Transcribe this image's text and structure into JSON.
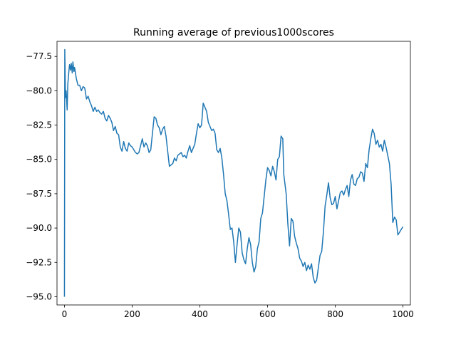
{
  "chart_data": {
    "type": "line",
    "title": "Running average of previous1000scores",
    "xlabel": "",
    "ylabel": "",
    "xlim": [
      -22,
      1022
    ],
    "ylim": [
      -95.6,
      -76.4
    ],
    "xticks": [
      0,
      200,
      400,
      600,
      800,
      1000
    ],
    "yticks": [
      -95.0,
      -92.5,
      -90.0,
      -87.5,
      -85.0,
      -82.5,
      -80.0,
      -77.5
    ],
    "xtick_labels": [
      "0",
      "200",
      "400",
      "600",
      "800",
      "1000"
    ],
    "ytick_labels": [
      "−95.0",
      "−92.5",
      "−90.0",
      "−87.5",
      "−85.0",
      "−82.5",
      "−80.0",
      "−77.5"
    ],
    "grid": false,
    "legend": "none",
    "colors": {
      "line": "#1f77b4",
      "axes": "#000000"
    },
    "series": [
      {
        "x": [
          0,
          1,
          3,
          5,
          8,
          10,
          13,
          15,
          18,
          20,
          23,
          25,
          28,
          30,
          35,
          40,
          45,
          50,
          55,
          60,
          65,
          70,
          75,
          80,
          85,
          90,
          95,
          100,
          105,
          110,
          115,
          120,
          125,
          130,
          135,
          140,
          145,
          150,
          155,
          160,
          165,
          170,
          175,
          180,
          185,
          190,
          195,
          200,
          205,
          210,
          215,
          220,
          225,
          230,
          235,
          240,
          245,
          250,
          255,
          260,
          265,
          270,
          275,
          280,
          285,
          290,
          295,
          300,
          305,
          310,
          315,
          320,
          325,
          330,
          335,
          340,
          345,
          350,
          355,
          360,
          365,
          370,
          375,
          380,
          385,
          390,
          395,
          400,
          405,
          410,
          415,
          420,
          425,
          430,
          435,
          440,
          445,
          450,
          455,
          460,
          465,
          470,
          475,
          480,
          485,
          490,
          495,
          500,
          505,
          510,
          515,
          520,
          525,
          530,
          535,
          540,
          545,
          550,
          555,
          560,
          565,
          570,
          575,
          580,
          585,
          590,
          595,
          600,
          605,
          610,
          615,
          620,
          625,
          630,
          635,
          640,
          645,
          648,
          650,
          655,
          660,
          665,
          670,
          675,
          680,
          685,
          690,
          695,
          700,
          705,
          710,
          715,
          720,
          725,
          730,
          735,
          740,
          745,
          750,
          755,
          760,
          765,
          770,
          775,
          780,
          785,
          790,
          795,
          800,
          805,
          810,
          815,
          820,
          825,
          830,
          835,
          840,
          845,
          850,
          855,
          860,
          865,
          870,
          875,
          880,
          885,
          890,
          895,
          900,
          905,
          910,
          915,
          920,
          925,
          930,
          935,
          940,
          945,
          950,
          955,
          960,
          965,
          970,
          975,
          980,
          985,
          990,
          995,
          1000
        ],
        "values": [
          -95.0,
          -77.0,
          -80.5,
          -80.0,
          -81.4,
          -79.5,
          -78.6,
          -78.1,
          -78.5,
          -78.0,
          -78.7,
          -77.9,
          -78.6,
          -78.3,
          -79.1,
          -79.6,
          -79.6,
          -80.0,
          -79.7,
          -79.8,
          -80.6,
          -80.4,
          -80.8,
          -81.1,
          -81.5,
          -81.2,
          -81.5,
          -81.4,
          -81.6,
          -81.7,
          -81.5,
          -82.0,
          -82.2,
          -81.8,
          -82.0,
          -82.3,
          -82.9,
          -82.6,
          -83.1,
          -83.2,
          -84.1,
          -84.4,
          -83.7,
          -84.2,
          -84.4,
          -83.8,
          -84.0,
          -84.1,
          -84.3,
          -84.5,
          -84.6,
          -84.5,
          -84.0,
          -83.5,
          -84.1,
          -83.8,
          -84.0,
          -84.5,
          -84.3,
          -83.1,
          -81.9,
          -82.0,
          -82.5,
          -82.7,
          -83.2,
          -82.8,
          -82.6,
          -83.3,
          -84.4,
          -85.5,
          -85.4,
          -85.3,
          -84.9,
          -85.1,
          -84.7,
          -84.6,
          -84.5,
          -84.8,
          -84.7,
          -84.9,
          -84.4,
          -84.0,
          -84.5,
          -84.2,
          -83.9,
          -83.1,
          -82.4,
          -82.7,
          -82.5,
          -80.9,
          -81.2,
          -81.5,
          -82.3,
          -82.6,
          -82.9,
          -82.8,
          -83.1,
          -84.3,
          -84.5,
          -84.2,
          -84.9,
          -86.1,
          -87.5,
          -88.0,
          -89.0,
          -90.1,
          -90.0,
          -91.0,
          -92.5,
          -91.2,
          -90.0,
          -90.3,
          -91.8,
          -92.3,
          -92.6,
          -91.5,
          -90.7,
          -91.2,
          -92.5,
          -93.2,
          -92.8,
          -91.5,
          -91.0,
          -89.3,
          -88.9,
          -87.7,
          -86.5,
          -85.6,
          -85.8,
          -86.2,
          -85.5,
          -85.9,
          -86.5,
          -85.0,
          -84.8,
          -83.3,
          -83.5,
          -86.1,
          -86.5,
          -87.5,
          -89.7,
          -91.3,
          -89.3,
          -89.5,
          -90.6,
          -91.1,
          -91.5,
          -92.2,
          -92.4,
          -92.8,
          -92.5,
          -93.1,
          -92.7,
          -93.0,
          -92.6,
          -93.6,
          -94.0,
          -93.8,
          -92.9,
          -92.0,
          -91.7,
          -90.3,
          -88.4,
          -87.6,
          -86.7,
          -87.8,
          -88.3,
          -88.2,
          -87.7,
          -88.6,
          -88.0,
          -87.4,
          -87.3,
          -87.6,
          -87.2,
          -86.9,
          -87.7,
          -86.5,
          -86.1,
          -86.8,
          -86.9,
          -86.4,
          -86.3,
          -85.9,
          -86.0,
          -86.6,
          -85.3,
          -85.6,
          -84.3,
          -83.5,
          -82.8,
          -83.1,
          -83.9,
          -83.6,
          -84.1,
          -83.9,
          -84.4,
          -83.6,
          -84.1,
          -84.7,
          -85.3,
          -86.8,
          -89.6,
          -89.2,
          -89.4,
          -90.5,
          -90.3,
          -90.1,
          -89.9
        ]
      }
    ]
  }
}
